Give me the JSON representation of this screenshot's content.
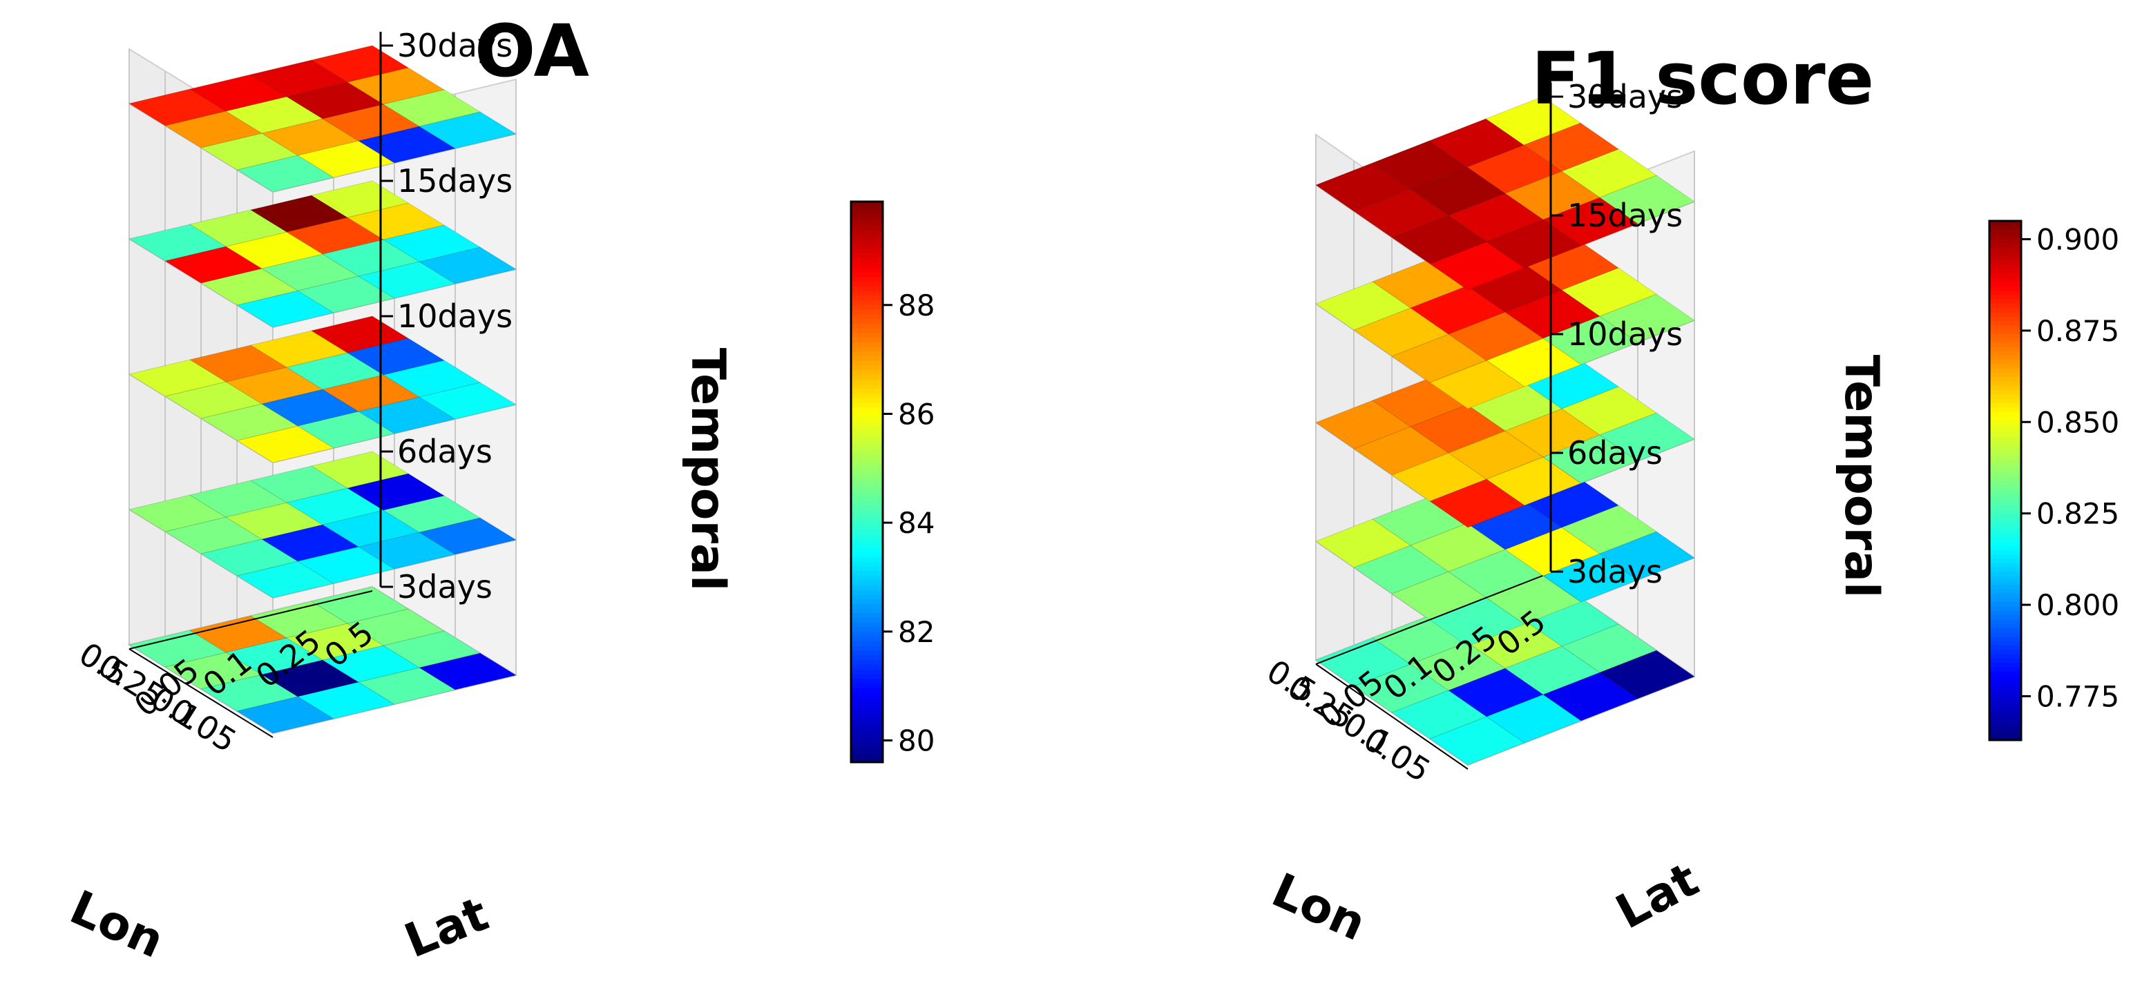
{
  "chart_data": [
    {
      "type": "heatmap",
      "title": "OA",
      "xlabel": "Lon",
      "ylabel": "Lat",
      "zlabel": "Temporal",
      "lon_ticks": [
        "0.05",
        "0.1",
        "0.25",
        "0.5"
      ],
      "lat_ticks": [
        "0.05",
        "0.1",
        "0.25",
        "0.5"
      ],
      "z_ticks": [
        "3days",
        "6days",
        "10days",
        "15days",
        "30days"
      ],
      "colorbar": {
        "min": 79.6,
        "max": 89.9,
        "ticks": [
          "80",
          "82",
          "84",
          "86",
          "88"
        ],
        "tick_values": [
          80,
          82,
          84,
          86,
          88
        ]
      },
      "layers": [
        {
          "temporal": "3days",
          "values": [
            [
              82.6,
              83.4,
              84.3,
              80.8
            ],
            [
              84.2,
              79.6,
              83.5,
              84.4
            ],
            [
              84.8,
              83.9,
              85.4,
              84.7
            ],
            [
              84.4,
              87.2,
              84.9,
              84.6
            ]
          ]
        },
        {
          "temporal": "6days",
          "values": [
            [
              83.6,
              83.4,
              82.9,
              82.1
            ],
            [
              84.1,
              81.2,
              83.2,
              84.3
            ],
            [
              84.7,
              85.3,
              83.6,
              80.7
            ],
            [
              84.9,
              84.6,
              84.4,
              85.4
            ]
          ]
        },
        {
          "temporal": "10days",
          "values": [
            [
              86.1,
              84.3,
              82.9,
              83.5
            ],
            [
              85.1,
              82.1,
              87.3,
              83.4
            ],
            [
              85.4,
              86.9,
              84.1,
              81.8
            ],
            [
              85.6,
              87.4,
              86.4,
              88.9
            ]
          ]
        },
        {
          "temporal": "15days",
          "values": [
            [
              83.4,
              84.3,
              83.6,
              82.9
            ],
            [
              85.2,
              84.6,
              84.1,
              83.4
            ],
            [
              88.6,
              86.0,
              87.9,
              86.4
            ],
            [
              84.1,
              85.3,
              89.9,
              85.6
            ]
          ]
        },
        {
          "temporal": "30days",
          "values": [
            [
              84.3,
              86.0,
              81.3,
              83.1
            ],
            [
              85.4,
              86.9,
              87.6,
              85.1
            ],
            [
              87.1,
              85.6,
              89.2,
              87.0
            ],
            [
              88.3,
              88.7,
              88.9,
              88.4
            ]
          ]
        }
      ]
    },
    {
      "type": "heatmap",
      "title": "F1 score",
      "xlabel": "Lon",
      "ylabel": "Lat",
      "zlabel": "Temporal",
      "lon_ticks": [
        "0.05",
        "0.1",
        "0.25",
        "0.5"
      ],
      "lat_ticks": [
        "0.05",
        "0.1",
        "0.25",
        "0.5"
      ],
      "z_ticks": [
        "3days",
        "6days",
        "10days",
        "15days",
        "30days"
      ],
      "colorbar": {
        "min": 0.763,
        "max": 0.905,
        "ticks": [
          "0.775",
          "0.800",
          "0.825",
          "0.850",
          "0.875",
          "0.900"
        ],
        "tick_values": [
          0.775,
          0.8,
          0.825,
          0.85,
          0.875,
          0.9
        ]
      },
      "layers": [
        {
          "temporal": "3days",
          "values": [
            [
              0.818,
              0.814,
              0.779,
              0.766
            ],
            [
              0.821,
              0.783,
              0.826,
              0.829
            ],
            [
              0.828,
              0.834,
              0.842,
              0.825
            ],
            [
              0.824,
              0.831,
              0.829,
              0.768
            ]
          ]
        },
        {
          "temporal": "6days",
          "values": [
            [
              0.826,
              0.835,
              0.812,
              0.809
            ],
            [
              0.836,
              0.832,
              0.852,
              0.836
            ],
            [
              0.831,
              0.84,
              0.79,
              0.786
            ],
            [
              0.845,
              0.834,
              0.8,
              0.79
            ]
          ]
        },
        {
          "temporal": "10days",
          "values": [
            [
              0.884,
              0.856,
              0.831,
              0.828
            ],
            [
              0.858,
              0.861,
              0.86,
              0.846
            ],
            [
              0.866,
              0.874,
              0.843,
              0.815
            ],
            [
              0.867,
              0.871,
              0.887,
              0.852
            ]
          ]
        },
        {
          "temporal": "15days",
          "values": [
            [
              0.858,
              0.852,
              0.834,
              0.836
            ],
            [
              0.863,
              0.873,
              0.89,
              0.848
            ],
            [
              0.86,
              0.886,
              0.895,
              0.877
            ],
            [
              0.846,
              0.864,
              0.905,
              0.844
            ]
          ]
        },
        {
          "temporal": "30days",
          "values": [
            [
              0.888,
              0.896,
              0.891,
              0.836
            ],
            [
              0.898,
              0.892,
              0.868,
              0.847
            ],
            [
              0.895,
              0.9,
              0.88,
              0.876
            ],
            [
              0.897,
              0.899,
              0.894,
              0.85
            ]
          ]
        }
      ]
    }
  ]
}
